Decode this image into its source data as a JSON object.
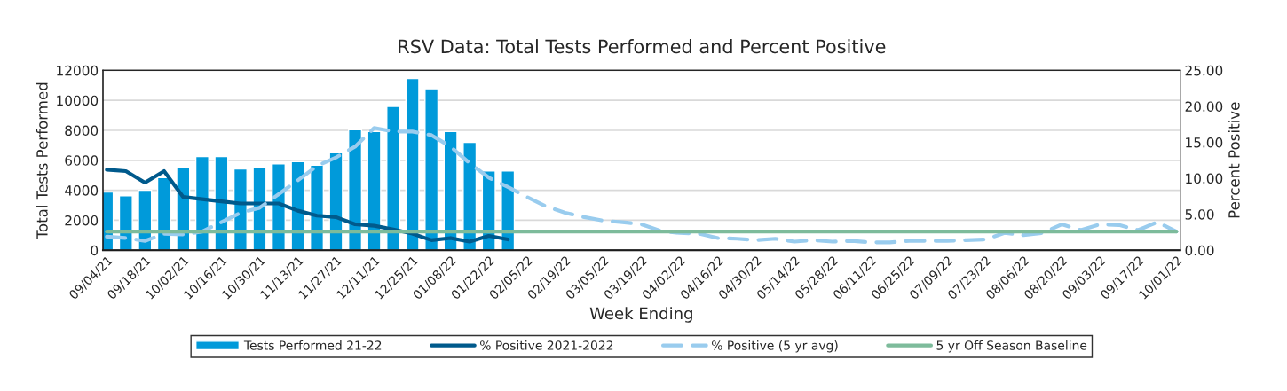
{
  "chart_data": {
    "type": "bar",
    "title": "RSV Data: Total Tests Performed and Percent Positive",
    "xlabel": "Week Ending",
    "ylabel": "Total Tests Performed",
    "y2label": "Percent Positive",
    "categories": [
      "09/04/21",
      null,
      "09/18/21",
      null,
      "10/02/21",
      null,
      "10/16/21",
      null,
      "10/30/21",
      null,
      "11/13/21",
      null,
      "11/27/21",
      null,
      "12/11/21",
      null,
      "12/25/21",
      null,
      "01/08/22",
      null,
      "01/22/22",
      null,
      "02/05/22",
      null,
      "02/19/22",
      null,
      "03/05/22",
      null,
      "03/19/22",
      null,
      "04/02/22",
      null,
      "04/16/22",
      null,
      "04/30/22",
      null,
      "05/14/22",
      null,
      "05/28/22",
      null,
      "06/11/22",
      null,
      "06/25/22",
      null,
      "07/09/22",
      null,
      "07/23/22",
      null,
      "08/06/22",
      null,
      "08/20/22",
      null,
      "09/03/22",
      null,
      "09/17/22",
      null,
      "10/01/22"
    ],
    "series": [
      {
        "name": "Tests Performed 21-22",
        "color": "#009ada",
        "values": [
          3880,
          3640,
          4000,
          4840,
          5550,
          6250,
          6250,
          5430,
          5550,
          5770,
          5910,
          5670,
          6510,
          8040,
          7920,
          9590,
          11460,
          10770,
          7920,
          7200,
          5290,
          5290,
          null,
          null,
          null,
          null,
          null,
          null,
          null,
          null,
          null,
          null,
          null,
          null,
          null,
          null,
          null,
          null,
          null,
          null,
          null,
          null,
          null,
          null,
          null,
          null,
          null,
          null,
          null,
          null,
          null,
          null,
          null,
          null,
          null,
          null,
          null
        ]
      },
      {
        "name": "% Positive 2021-2022",
        "type": "line",
        "axis": "y2",
        "line_style": "solid",
        "color": "#005a8c",
        "values": [
          11.2,
          11.0,
          9.4,
          11.0,
          7.4,
          7.1,
          6.8,
          6.5,
          6.5,
          6.5,
          5.5,
          4.8,
          4.6,
          3.6,
          3.4,
          2.9,
          2.3,
          1.4,
          1.7,
          1.2,
          2.0,
          1.5,
          null,
          null,
          null,
          null,
          null,
          null,
          null,
          null,
          null,
          null,
          null,
          null,
          null,
          null,
          null,
          null,
          null,
          null,
          null,
          null,
          null,
          null,
          null,
          null,
          null,
          null,
          null,
          null,
          null,
          null,
          null,
          null,
          null,
          null,
          null
        ]
      },
      {
        "name": "% Positive (5 yr avg)",
        "type": "line",
        "axis": "y2",
        "line_style": "dashed",
        "color": "#99ccee",
        "values": [
          1.9,
          1.7,
          1.3,
          2.3,
          2.2,
          2.6,
          3.9,
          5.2,
          5.9,
          7.8,
          9.7,
          11.7,
          12.9,
          14.4,
          17.0,
          16.5,
          16.5,
          16.0,
          14.4,
          12.1,
          10.1,
          8.8,
          7.4,
          6.1,
          5.2,
          4.6,
          4.1,
          3.9,
          3.6,
          2.7,
          2.4,
          2.3,
          1.7,
          1.6,
          1.4,
          1.6,
          1.2,
          1.4,
          1.2,
          1.3,
          1.1,
          1.1,
          1.3,
          1.3,
          1.3,
          1.4,
          1.5,
          2.4,
          2.1,
          2.4,
          3.6,
          2.8,
          3.6,
          3.5,
          2.8,
          3.9,
          2.6
        ]
      },
      {
        "name": "5 yr Off Season Baseline",
        "type": "line",
        "axis": "y2",
        "line_style": "solid",
        "color": "#7dbb9b",
        "values": [
          2.6,
          2.6,
          2.6,
          2.6,
          2.6,
          2.6,
          2.6,
          2.6,
          2.6,
          2.6,
          2.6,
          2.6,
          2.6,
          2.6,
          2.6,
          2.6,
          2.6,
          2.6,
          2.6,
          2.6,
          2.6,
          2.6,
          2.6,
          2.6,
          2.6,
          2.6,
          2.6,
          2.6,
          2.6,
          2.6,
          2.6,
          2.6,
          2.6,
          2.6,
          2.6,
          2.6,
          2.6,
          2.6,
          2.6,
          2.6,
          2.6,
          2.6,
          2.6,
          2.6,
          2.6,
          2.6,
          2.6,
          2.6,
          2.6,
          2.6,
          2.6,
          2.6,
          2.6,
          2.6,
          2.6,
          2.6,
          2.6
        ]
      }
    ],
    "ylim": [
      0,
      12000
    ],
    "yticks": [
      0,
      2000,
      4000,
      6000,
      8000,
      10000,
      12000
    ],
    "y2lim": [
      0,
      25
    ],
    "y2ticks": [
      {
        "value": 0,
        "label": "0.00"
      },
      {
        "value": 5,
        "label": "5.00"
      },
      {
        "value": 10,
        "label": "10.00"
      },
      {
        "value": 15,
        "label": "15.00"
      },
      {
        "value": 20,
        "label": "20.00"
      },
      {
        "value": 25,
        "label": "25.00"
      }
    ],
    "grid": "y",
    "legend": "bottom"
  }
}
